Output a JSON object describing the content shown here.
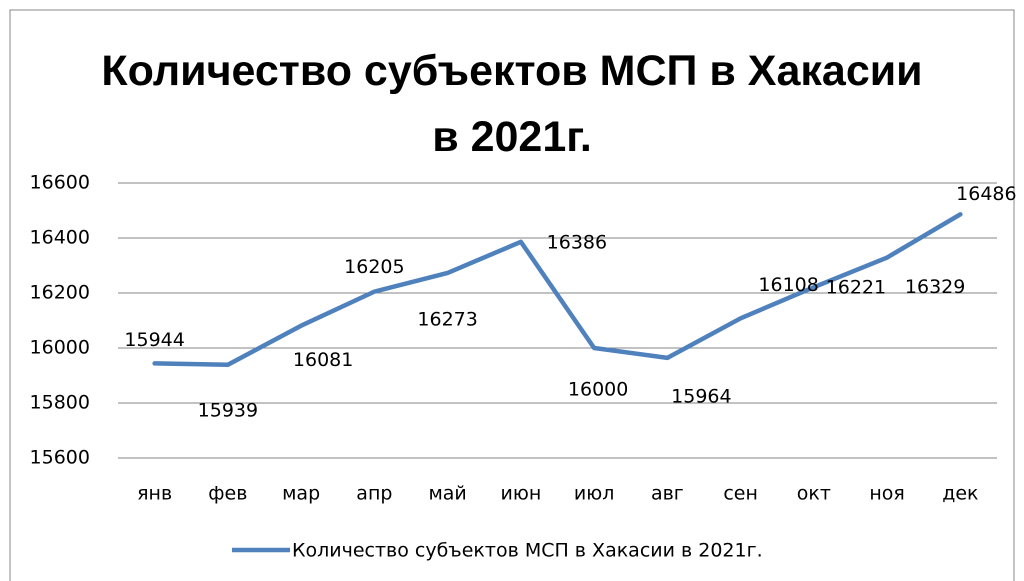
{
  "chart_data": {
    "type": "line",
    "title": "Количество субъектов МСП в Хакасии в 2021г.",
    "categories": [
      "янв",
      "фев",
      "мар",
      "апр",
      "май",
      "июн",
      "июл",
      "авг",
      "сен",
      "окт",
      "ноя",
      "дек"
    ],
    "series": [
      {
        "name": "Количество субъектов МСП в Хакасии в 2021г.",
        "color": "#4f81bd",
        "values": [
          15944,
          15939,
          16081,
          16205,
          16273,
          16386,
          16000,
          15964,
          16108,
          16221,
          16329,
          16486
        ]
      }
    ],
    "ylim": [
      15600,
      16600
    ],
    "yticks": [
      15600,
      15800,
      16000,
      16200,
      16400,
      16600
    ],
    "grid": true,
    "legend": "bottom"
  }
}
